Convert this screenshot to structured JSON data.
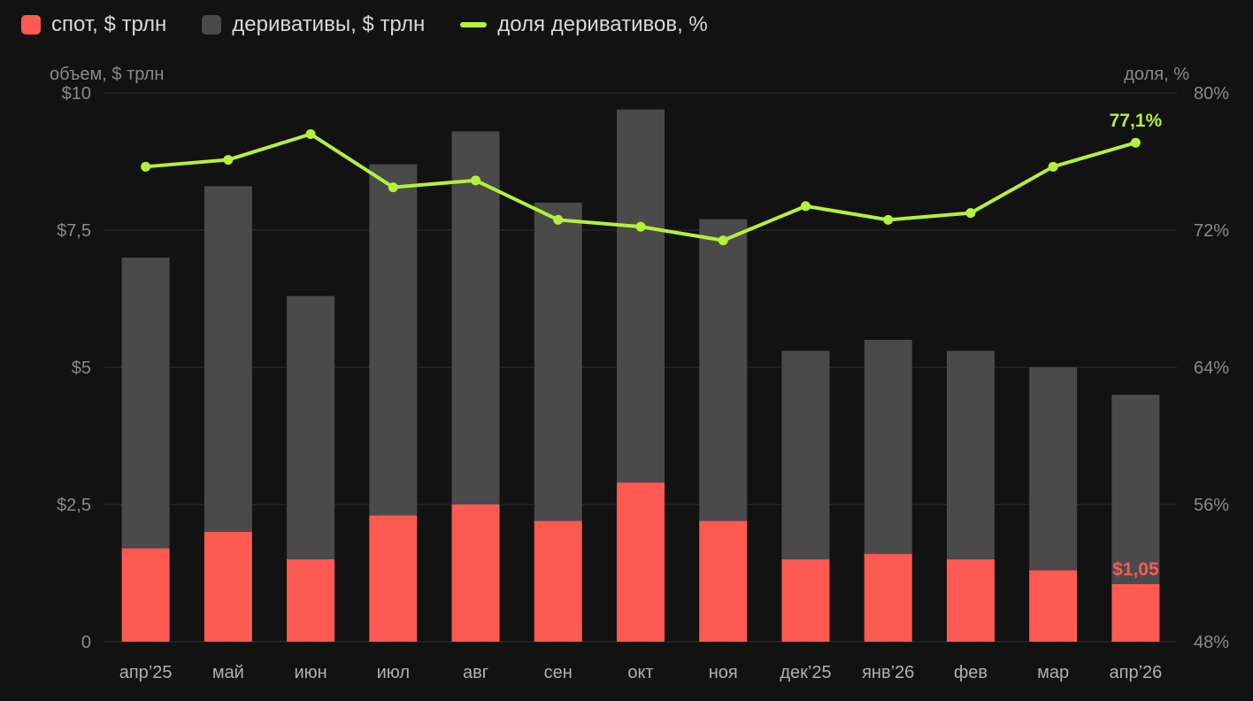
{
  "legend": [
    {
      "label": "спот, $ трлн",
      "color": "#ff5a52",
      "kind": "square"
    },
    {
      "label": "деривативы, $ трлн",
      "color": "#4a4a4a",
      "kind": "square"
    },
    {
      "label": "доля деривативов, %",
      "color": "#b6f03c",
      "kind": "line"
    }
  ],
  "chart_data": {
    "type": "bar",
    "stacked": true,
    "categories": [
      "апр’25",
      "май",
      "июн",
      "июл",
      "авг",
      "сен",
      "окт",
      "ноя",
      "дек’25",
      "янв’26",
      "фев",
      "мар",
      "апр’26"
    ],
    "series": [
      {
        "name": "спот, $ трлн",
        "type": "bar",
        "axis": "left",
        "color": "#ff5a52",
        "values": [
          1.7,
          2.0,
          1.5,
          2.3,
          2.5,
          2.2,
          2.9,
          2.2,
          1.5,
          1.6,
          1.5,
          1.3,
          1.05
        ]
      },
      {
        "name": "деривативы, $ трлн",
        "type": "bar",
        "axis": "left",
        "color": "#4a4a4a",
        "values": [
          5.3,
          6.3,
          4.8,
          6.4,
          6.8,
          5.8,
          6.8,
          5.5,
          3.8,
          3.9,
          3.8,
          3.7,
          3.45
        ]
      },
      {
        "name": "доля деривативов, %",
        "type": "line",
        "axis": "right",
        "color": "#b6f03c",
        "values": [
          75.7,
          76.1,
          77.6,
          74.5,
          74.9,
          72.6,
          72.2,
          71.4,
          73.4,
          72.6,
          73.0,
          75.7,
          77.1
        ]
      }
    ],
    "y_left": {
      "label": "объем, $ трлн",
      "ylim": [
        0,
        10
      ],
      "ticks": [
        0,
        2.5,
        5,
        7.5,
        10
      ],
      "tick_labels": [
        "0",
        "$2,5",
        "$5",
        "$7,5",
        "$10"
      ]
    },
    "y_right": {
      "label": "доля, %",
      "ylim": [
        48,
        80
      ],
      "ticks": [
        48,
        56,
        64,
        72,
        80
      ],
      "tick_labels": [
        "48%",
        "56%",
        "64%",
        "72%",
        "80%"
      ]
    },
    "annotations": [
      {
        "text": "77,1%",
        "series": 2,
        "index": 12,
        "color": "#b6f03c"
      },
      {
        "text": "$1,05",
        "series": 0,
        "index": 12,
        "color": "#ff5a52"
      }
    ],
    "grid": true,
    "legend_position": "top-left"
  }
}
